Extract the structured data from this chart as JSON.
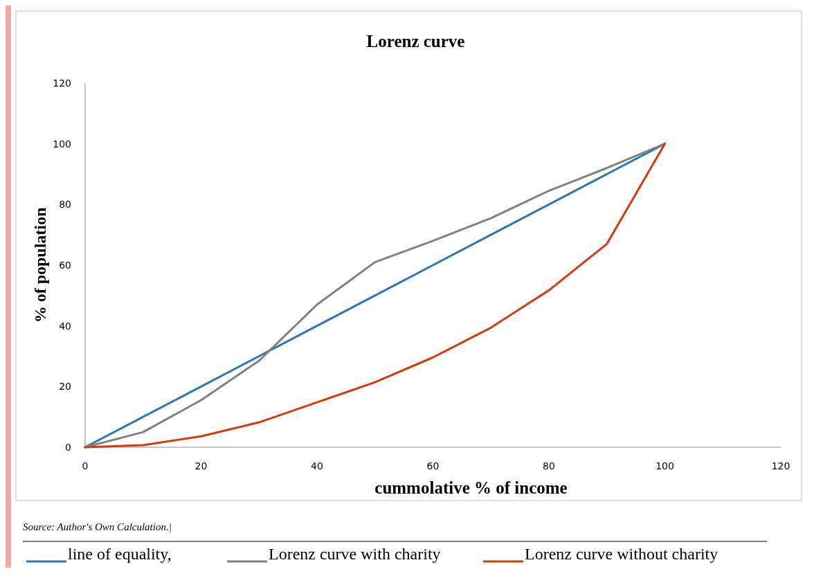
{
  "chart_data": {
    "type": "line",
    "title": "Lorenz curve",
    "xlabel": "cummolative % of income",
    "ylabel": "% of population",
    "x": [
      0,
      10,
      20,
      30,
      40,
      50,
      60,
      70,
      80,
      90,
      100
    ],
    "series": [
      {
        "name": "line of equality,",
        "color": "#2e75b6",
        "values": [
          0,
          10,
          20,
          30,
          40,
          50,
          60,
          70,
          80,
          90,
          100
        ]
      },
      {
        "name": "Lorenz curve with charity",
        "color": "#808080",
        "values": [
          0,
          5,
          15.5,
          28.5,
          47,
          61,
          68,
          75.5,
          84.5,
          92,
          100
        ]
      },
      {
        "name": "Lorenz curve without charity",
        "color": "#d63a0a",
        "values": [
          0,
          0.7,
          3.6,
          8.2,
          14.8,
          21.4,
          29.6,
          39.4,
          51.7,
          67,
          100
        ]
      }
    ],
    "xlim": [
      0,
      120
    ],
    "xticks": [
      0,
      20,
      40,
      60,
      80,
      100,
      120
    ],
    "ylim": [
      0,
      120
    ],
    "yticks": [
      0,
      20,
      40,
      60,
      80,
      100,
      120
    ],
    "grid": false,
    "legend": "bottom",
    "marker": "none",
    "line_style": "solid",
    "annotations": [
      "Source: Author's Own Calculation.|"
    ]
  }
}
